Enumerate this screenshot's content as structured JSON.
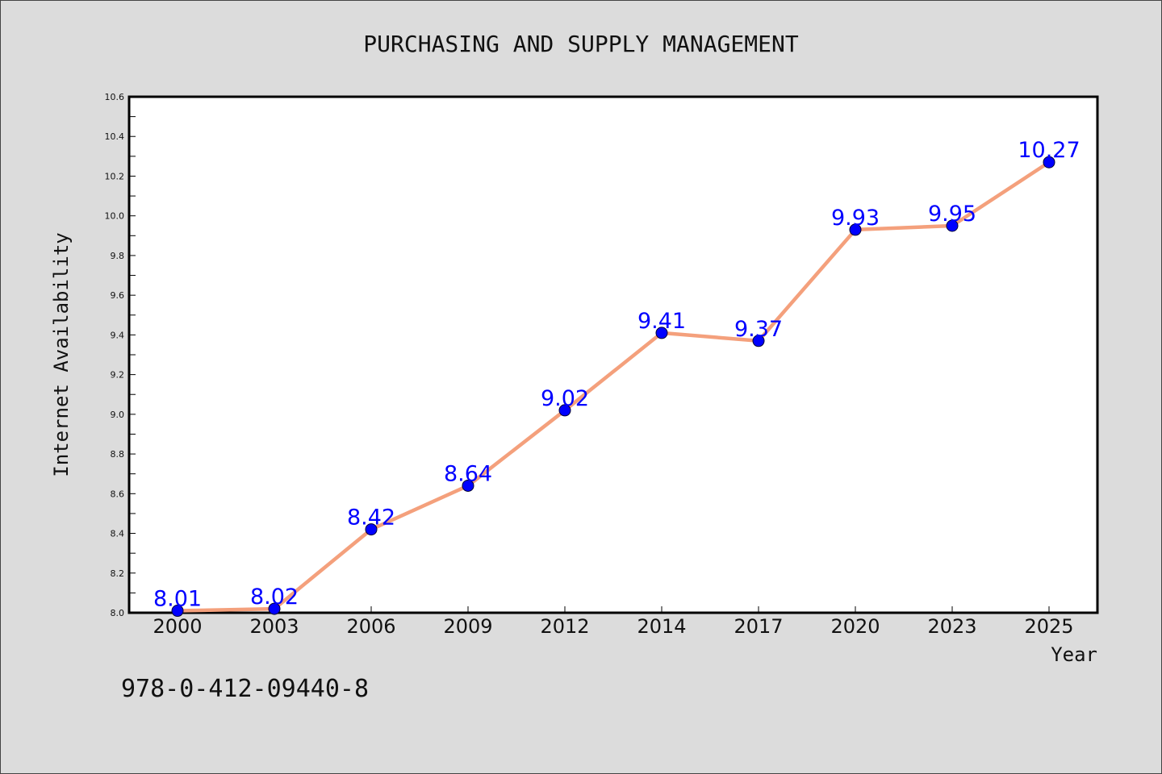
{
  "chart_data": {
    "type": "line",
    "title": "PURCHASING AND SUPPLY MANAGEMENT",
    "xlabel": "Year",
    "ylabel": "Internet Availability",
    "categories": [
      "2000",
      "2003",
      "2006",
      "2009",
      "2012",
      "2014",
      "2017",
      "2020",
      "2023",
      "2025"
    ],
    "series": [
      {
        "values": [
          8.01,
          8.02,
          8.42,
          8.64,
          9.02,
          9.41,
          9.37,
          9.93,
          9.95,
          10.27
        ],
        "data_labels": [
          "8.01",
          "8.02",
          "8.42",
          "8.64",
          "9.02",
          "9.41",
          "9.37",
          "9.93",
          "9.95",
          "10.27"
        ]
      }
    ],
    "ylim": [
      8.0,
      10.6
    ],
    "yticks": [
      "8.0",
      "8.2",
      "8.4",
      "8.6",
      "8.8",
      "9.0",
      "9.2",
      "9.4",
      "9.6",
      "9.8",
      "10.0",
      "10.2",
      "10.4",
      "10.6"
    ],
    "grid": false,
    "legend": "none",
    "colors": {
      "line": "#f4a07c",
      "marker": "#0000ff",
      "data_label": "#0000ff",
      "background": "#dcdcdc",
      "plot_background": "#ffffff"
    }
  },
  "footer": {
    "isbn": "978-0-412-09440-8"
  }
}
